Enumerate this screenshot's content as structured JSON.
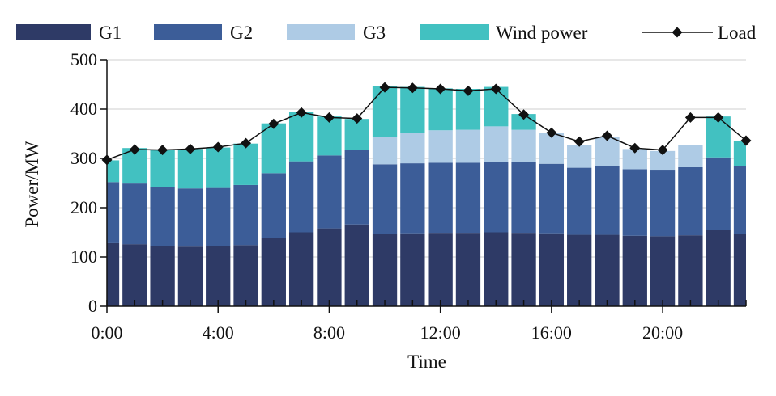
{
  "chart_data": {
    "type": "bar",
    "stacked": true,
    "xlabel": "Time",
    "ylabel": "Power/MW",
    "ylim": [
      0,
      500
    ],
    "yticks": [
      0,
      100,
      200,
      300,
      400,
      500
    ],
    "xtick_labels": [
      "0:00",
      "4:00",
      "8:00",
      "12:00",
      "16:00",
      "20:00"
    ],
    "xtick_hours": [
      0,
      4,
      8,
      12,
      16,
      20
    ],
    "hours": [
      0,
      1,
      2,
      3,
      4,
      5,
      6,
      7,
      8,
      9,
      10,
      11,
      12,
      13,
      14,
      15,
      16,
      17,
      18,
      19,
      20,
      21,
      22,
      23
    ],
    "grid": "horizontal",
    "legend_position": "top",
    "series": [
      {
        "name": "G1",
        "color": "#2e3a66",
        "values": [
          128,
          126,
          122,
          121,
          122,
          124,
          139,
          150,
          158,
          166,
          147,
          148,
          149,
          149,
          150,
          149,
          148,
          145,
          145,
          143,
          142,
          144,
          155,
          146
        ]
      },
      {
        "name": "G2",
        "color": "#3c5d98",
        "values": [
          124,
          123,
          120,
          118,
          118,
          122,
          131,
          144,
          148,
          151,
          141,
          142,
          142,
          142,
          143,
          143,
          141,
          136,
          139,
          135,
          135,
          138,
          147,
          138
        ]
      },
      {
        "name": "G3",
        "color": "#aecbe5",
        "values": [
          0,
          0,
          0,
          0,
          0,
          0,
          0,
          0,
          0,
          0,
          56,
          62,
          66,
          67,
          72,
          66,
          62,
          46,
          60,
          41,
          38,
          45,
          0,
          0
        ]
      },
      {
        "name": "Wind power",
        "color": "#42c1c1",
        "values": [
          44,
          72,
          76,
          80,
          82,
          84,
          101,
          101,
          79,
          63,
          103,
          93,
          85,
          83,
          80,
          32,
          0,
          0,
          0,
          0,
          0,
          0,
          83,
          52
        ]
      }
    ],
    "load": {
      "name": "Load",
      "color": "#111111",
      "values": [
        297,
        318,
        317,
        319,
        323,
        331,
        370,
        393,
        383,
        381,
        444,
        443,
        441,
        437,
        441,
        389,
        352,
        334,
        346,
        321,
        317,
        383,
        383,
        336
      ]
    }
  }
}
